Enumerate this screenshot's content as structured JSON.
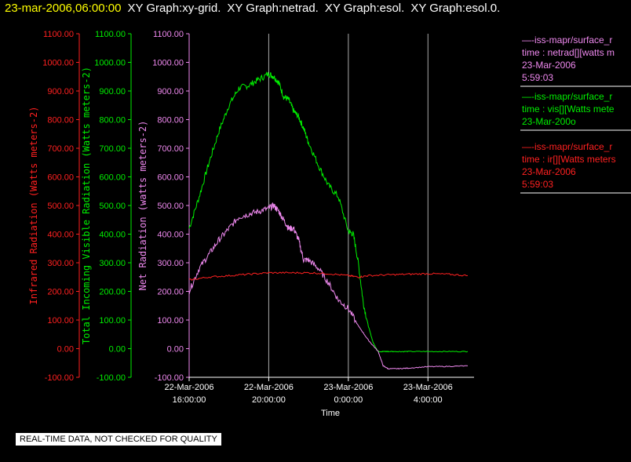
{
  "header": {
    "date": "23-mar-2006,06:00:00",
    "titles": [
      "XY Graph:xy-grid.",
      "XY Graph:netrad.",
      "XY Graph:esol.",
      "XY Graph:esol.0."
    ]
  },
  "notice": "REAL-TIME DATA, NOT CHECKED FOR QUALITY",
  "colors": {
    "ir": "#ff2020",
    "vis": "#00ee00",
    "net": "#ee88ee",
    "grid": "#aaaaaa",
    "axis": "#ffffff"
  },
  "legend": [
    {
      "lines": [
        "—-iss-mapr/surface_r",
        "time : netrad[][watts m",
        "23-Mar-2006",
        "5:59:03"
      ],
      "color": "#ee88ee"
    },
    {
      "lines": [
        "—-iss-mapr/surface_r",
        "time : vis[][Watts mete",
        "23-Mar-200o"
      ],
      "color": "#00ee00"
    },
    {
      "lines": [
        "—-iss-mapr/surface_r",
        "time : ir[][Watts meters",
        "23-Mar-2006",
        "5:59:03"
      ],
      "color": "#ff2020"
    }
  ],
  "chart_data": {
    "type": "line",
    "xlabel": "Time",
    "xlim": [
      -8,
      6
    ],
    "x_ticks": [
      {
        "x": -8,
        "line1": "22-Mar-2006",
        "line2": "16:00:00"
      },
      {
        "x": -4,
        "line1": "22-Mar-2006",
        "line2": "20:00:00"
      },
      {
        "x": 0,
        "line1": "23-Mar-2006",
        "line2": "0:00:00"
      },
      {
        "x": 4,
        "line1": "23-Mar-2006",
        "line2": "4:00:00"
      }
    ],
    "ylim": [
      -100,
      1100
    ],
    "y_ticks": [
      -100,
      0,
      100,
      200,
      300,
      400,
      500,
      600,
      700,
      800,
      900,
      1000,
      1100
    ],
    "y_tick_labels": [
      "-100.00",
      "0.00",
      "100.00",
      "200.00",
      "300.00",
      "400.00",
      "500.00",
      "600.00",
      "700.00",
      "800.00",
      "900.00",
      "1000.00",
      "1100.00"
    ],
    "axes": [
      {
        "key": "ir",
        "label": "Infrared Radiation (Watts meters-2)"
      },
      {
        "key": "vis",
        "label": "Total Incoming Visible Radiation (Watts meters-2)"
      },
      {
        "key": "net",
        "label": "Net Radiation (watts meters-2)"
      }
    ],
    "grid": true,
    "series": [
      {
        "key": "vis",
        "x": [
          -8,
          -7.5,
          -7,
          -6.5,
          -6,
          -5.5,
          -5,
          -4.5,
          -4,
          -3.75,
          -3.5,
          -3.25,
          -3,
          -2.75,
          -2.5,
          -2.25,
          -2,
          -1.5,
          -1,
          -0.5,
          0,
          0.25,
          0.5,
          0.75,
          1,
          1.25,
          1.5,
          1.75,
          2,
          2.5,
          3,
          4,
          5,
          6
        ],
        "y": [
          420,
          530,
          650,
          760,
          850,
          910,
          920,
          940,
          960,
          950,
          930,
          880,
          870,
          830,
          810,
          770,
          720,
          640,
          570,
          530,
          410,
          400,
          300,
          160,
          80,
          20,
          -10,
          -10,
          -10,
          -10,
          -10,
          -10,
          -10,
          -10
        ]
      },
      {
        "key": "net",
        "x": [
          -8,
          -7.5,
          -7,
          -6.5,
          -6,
          -5.5,
          -5,
          -4.5,
          -4,
          -3.75,
          -3.5,
          -3.25,
          -3,
          -2.75,
          -2.5,
          -2.25,
          -2,
          -1.5,
          -1,
          -0.5,
          0,
          0.5,
          1,
          1.5,
          1.75,
          2,
          2.5,
          3,
          4,
          5,
          6
        ],
        "y": [
          200,
          280,
          330,
          380,
          420,
          460,
          470,
          480,
          490,
          500,
          480,
          450,
          420,
          420,
          380,
          310,
          310,
          280,
          230,
          170,
          140,
          80,
          30,
          -10,
          -60,
          -70,
          -70,
          -68,
          -63,
          -62,
          -60
        ]
      },
      {
        "key": "ir",
        "x": [
          -8,
          -7,
          -6,
          -5,
          -4,
          -3,
          -2,
          -1,
          0,
          0.5,
          1,
          2,
          3,
          4,
          5,
          6
        ],
        "y": [
          240,
          250,
          255,
          260,
          265,
          265,
          265,
          262,
          255,
          250,
          255,
          258,
          260,
          262,
          260,
          255
        ]
      }
    ]
  }
}
